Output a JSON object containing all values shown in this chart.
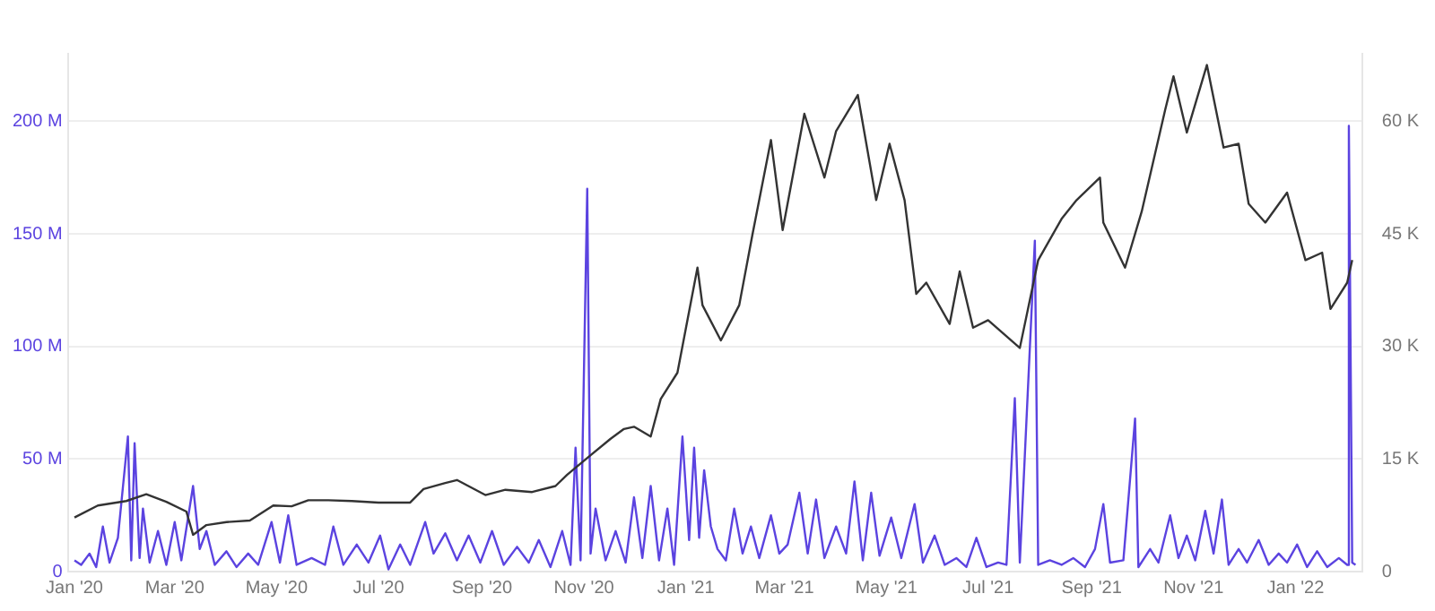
{
  "chart_data": {
    "type": "line",
    "xlim": [
      "2019-12-28",
      "2022-02-10"
    ],
    "xticks": [
      {
        "value": "2020-01-01",
        "label": "Jan '20"
      },
      {
        "value": "2020-03-01",
        "label": "Mar '20"
      },
      {
        "value": "2020-05-01",
        "label": "May '20"
      },
      {
        "value": "2020-07-01",
        "label": "Jul '20"
      },
      {
        "value": "2020-09-01",
        "label": "Sep '20"
      },
      {
        "value": "2020-11-01",
        "label": "Nov '20"
      },
      {
        "value": "2021-01-01",
        "label": "Jan '21"
      },
      {
        "value": "2021-03-01",
        "label": "Mar '21"
      },
      {
        "value": "2021-05-01",
        "label": "May '21"
      },
      {
        "value": "2021-07-01",
        "label": "Jul '21"
      },
      {
        "value": "2021-09-01",
        "label": "Sep '21"
      },
      {
        "value": "2021-11-01",
        "label": "Nov '21"
      },
      {
        "value": "2022-01-01",
        "label": "Jan '22"
      }
    ],
    "ylim": [
      0,
      230
    ],
    "yticks": [
      0,
      {
        "value": 50,
        "label": "50 M"
      },
      {
        "value": 100,
        "label": "100 M"
      },
      {
        "value": 150,
        "label": "150 M"
      },
      {
        "value": 200,
        "label": "200 M"
      }
    ],
    "y2lim": [
      0,
      69
    ],
    "y2ticks": [
      0,
      {
        "value": 15,
        "label": "15 K"
      },
      {
        "value": 30,
        "label": "30 K"
      },
      {
        "value": 45,
        "label": "45 K"
      },
      {
        "value": 60,
        "label": "60 K"
      }
    ],
    "grid": "y",
    "series": [
      {
        "color": "#333333",
        "axis": "y2",
        "x": [
          "2020-01-01",
          "2020-01-15",
          "2020-02-01",
          "2020-02-13",
          "2020-02-25",
          "2020-03-08",
          "2020-03-12",
          "2020-03-20",
          "2020-04-01",
          "2020-04-15",
          "2020-04-29",
          "2020-05-10",
          "2020-05-20",
          "2020-06-01",
          "2020-06-15",
          "2020-07-01",
          "2020-07-20",
          "2020-07-28",
          "2020-08-10",
          "2020-08-17",
          "2020-09-03",
          "2020-09-15",
          "2020-10-01",
          "2020-10-15",
          "2020-10-22",
          "2020-11-05",
          "2020-11-17",
          "2020-11-25",
          "2020-12-01",
          "2020-12-11",
          "2020-12-17",
          "2020-12-27",
          "2021-01-08",
          "2021-01-11",
          "2021-01-22",
          "2021-02-02",
          "2021-02-10",
          "2021-02-21",
          "2021-02-28",
          "2021-03-13",
          "2021-03-25",
          "2021-04-01",
          "2021-04-14",
          "2021-04-25",
          "2021-05-03",
          "2021-05-12",
          "2021-05-19",
          "2021-05-25",
          "2021-06-08",
          "2021-06-14",
          "2021-06-22",
          "2021-07-01",
          "2021-07-20",
          "2021-07-31",
          "2021-08-14",
          "2021-08-23",
          "2021-09-06",
          "2021-09-08",
          "2021-09-21",
          "2021-10-01",
          "2021-10-15",
          "2021-10-20",
          "2021-10-28",
          "2021-11-09",
          "2021-11-19",
          "2021-11-28",
          "2021-12-04",
          "2021-12-14",
          "2021-12-27",
          "2022-01-07",
          "2022-01-17",
          "2022-01-22",
          "2022-02-01",
          "2022-02-04"
        ],
        "values": [
          7.2,
          8.8,
          9.4,
          10.3,
          9.3,
          8.0,
          4.9,
          6.2,
          6.6,
          6.8,
          8.8,
          8.7,
          9.5,
          9.5,
          9.4,
          9.2,
          9.2,
          11.0,
          11.8,
          12.2,
          10.2,
          10.9,
          10.6,
          11.4,
          12.9,
          15.5,
          17.7,
          19.0,
          19.3,
          18.0,
          23.0,
          26.5,
          40.5,
          35.5,
          30.8,
          35.5,
          45.0,
          57.5,
          45.5,
          61.0,
          52.5,
          58.7,
          63.5,
          49.5,
          57.0,
          49.5,
          37.0,
          38.5,
          33.0,
          40.0,
          32.5,
          33.5,
          29.8,
          41.5,
          47.0,
          49.5,
          52.5,
          46.5,
          40.5,
          48.0,
          61.5,
          66.0,
          58.5,
          67.5,
          56.5,
          57.0,
          49.0,
          46.5,
          50.5,
          41.5,
          42.5,
          35.0,
          38.5,
          41.5
        ]
      },
      {
        "color": "#5b43e0",
        "x": [
          "2020-01-01",
          "2020-01-05",
          "2020-01-10",
          "2020-01-14",
          "2020-01-18",
          "2020-01-22",
          "2020-01-27",
          "2020-02-02",
          "2020-02-04",
          "2020-02-06",
          "2020-02-09",
          "2020-02-11",
          "2020-02-15",
          "2020-02-20",
          "2020-02-25",
          "2020-03-01",
          "2020-03-05",
          "2020-03-12",
          "2020-03-16",
          "2020-03-20",
          "2020-03-25",
          "2020-04-01",
          "2020-04-07",
          "2020-04-14",
          "2020-04-20",
          "2020-04-28",
          "2020-05-03",
          "2020-05-08",
          "2020-05-13",
          "2020-05-22",
          "2020-05-30",
          "2020-06-04",
          "2020-06-10",
          "2020-06-18",
          "2020-06-25",
          "2020-07-02",
          "2020-07-07",
          "2020-07-14",
          "2020-07-20",
          "2020-07-29",
          "2020-08-03",
          "2020-08-10",
          "2020-08-17",
          "2020-08-24",
          "2020-08-31",
          "2020-09-07",
          "2020-09-14",
          "2020-09-22",
          "2020-09-29",
          "2020-10-05",
          "2020-10-12",
          "2020-10-19",
          "2020-10-24",
          "2020-10-27",
          "2020-10-30",
          "2020-11-03",
          "2020-11-05",
          "2020-11-08",
          "2020-11-14",
          "2020-11-20",
          "2020-11-26",
          "2020-12-01",
          "2020-12-06",
          "2020-12-11",
          "2020-12-16",
          "2020-12-21",
          "2020-12-25",
          "2020-12-30",
          "2021-01-03",
          "2021-01-06",
          "2021-01-09",
          "2021-01-12",
          "2021-01-16",
          "2021-01-20",
          "2021-01-25",
          "2021-01-30",
          "2021-02-04",
          "2021-02-09",
          "2021-02-14",
          "2021-02-21",
          "2021-02-26",
          "2021-03-03",
          "2021-03-10",
          "2021-03-15",
          "2021-03-20",
          "2021-03-25",
          "2021-04-01",
          "2021-04-07",
          "2021-04-12",
          "2021-04-17",
          "2021-04-22",
          "2021-04-27",
          "2021-05-04",
          "2021-05-10",
          "2021-05-18",
          "2021-05-23",
          "2021-05-30",
          "2021-06-05",
          "2021-06-12",
          "2021-06-18",
          "2021-06-24",
          "2021-06-30",
          "2021-07-07",
          "2021-07-12",
          "2021-07-17",
          "2021-07-20",
          "2021-07-29",
          "2021-07-31",
          "2021-08-07",
          "2021-08-14",
          "2021-08-21",
          "2021-08-28",
          "2021-09-03",
          "2021-09-08",
          "2021-09-12",
          "2021-09-20",
          "2021-09-27",
          "2021-09-29",
          "2021-10-06",
          "2021-10-11",
          "2021-10-18",
          "2021-10-23",
          "2021-10-28",
          "2021-11-02",
          "2021-11-08",
          "2021-11-13",
          "2021-11-18",
          "2021-11-22",
          "2021-11-28",
          "2021-12-03",
          "2021-12-10",
          "2021-12-16",
          "2021-12-22",
          "2021-12-27",
          "2022-01-02",
          "2022-01-08",
          "2022-01-14",
          "2022-01-20",
          "2022-01-27",
          "2022-02-01",
          "2022-02-02",
          "2022-02-04",
          "2022-02-06"
        ],
        "values": [
          5,
          3,
          8,
          2,
          20,
          4,
          15,
          60,
          5,
          57,
          6,
          28,
          4,
          18,
          3,
          22,
          5,
          38,
          10,
          18,
          3,
          9,
          2,
          8,
          3,
          22,
          4,
          25,
          3,
          6,
          3,
          20,
          3,
          12,
          4,
          16,
          1,
          12,
          3,
          22,
          8,
          17,
          5,
          16,
          4,
          18,
          3,
          11,
          4,
          14,
          2,
          18,
          3,
          55,
          5,
          170,
          8,
          28,
          5,
          18,
          4,
          33,
          6,
          38,
          5,
          28,
          3,
          60,
          14,
          55,
          15,
          45,
          20,
          10,
          5,
          28,
          8,
          20,
          6,
          25,
          8,
          12,
          35,
          8,
          32,
          6,
          20,
          8,
          40,
          5,
          35,
          7,
          24,
          6,
          30,
          4,
          16,
          3,
          6,
          2,
          15,
          2,
          4,
          3,
          77,
          4,
          147,
          3,
          5,
          3,
          6,
          2,
          10,
          30,
          4,
          5,
          68,
          2,
          10,
          4,
          25,
          6,
          16,
          5,
          27,
          8,
          32,
          3,
          10,
          4,
          14,
          3,
          8,
          4,
          12,
          2,
          9,
          2,
          6,
          3,
          198,
          4,
          3
        ]
      }
    ]
  }
}
